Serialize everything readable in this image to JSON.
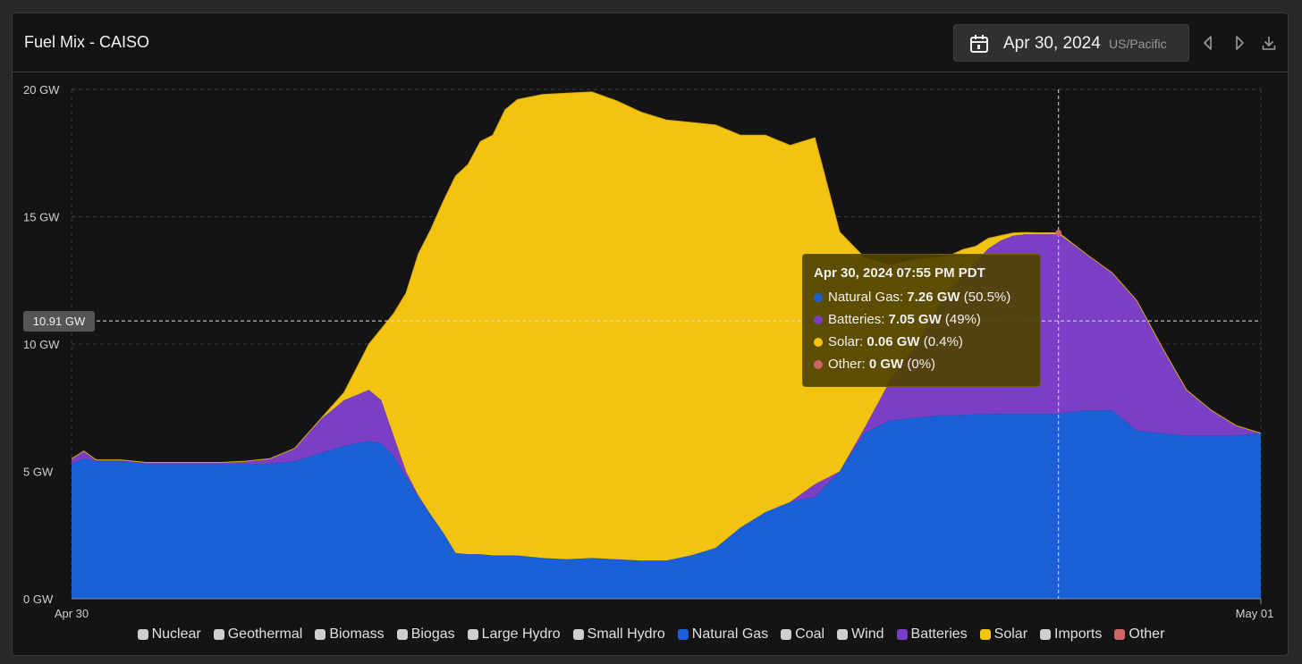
{
  "header": {
    "title": "Fuel Mix - CAISO",
    "date": "Apr 30, 2024",
    "timezone": "US/Pacific"
  },
  "crosshair": {
    "y_label": "10.91 GW",
    "y_value": 10.91,
    "x_value": 19.9167
  },
  "tooltip": {
    "title": "Apr 30, 2024 07:55 PM PDT",
    "rows": [
      {
        "name": "Natural Gas:",
        "value": "7.26 GW",
        "pct": "(50.5%)",
        "color": "#1a5fd6"
      },
      {
        "name": "Batteries:",
        "value": "7.05 GW",
        "pct": "(49%)",
        "color": "#7a3fc4"
      },
      {
        "name": "Solar:",
        "value": "0.06 GW",
        "pct": "(0.4%)",
        "color": "#f2c40f"
      },
      {
        "name": "Other:",
        "value": "0 GW",
        "pct": "(0%)",
        "color": "#d06565"
      }
    ]
  },
  "legend": [
    {
      "label": "Nuclear",
      "color": "#cfcfcf"
    },
    {
      "label": "Geothermal",
      "color": "#cfcfcf"
    },
    {
      "label": "Biomass",
      "color": "#cfcfcf"
    },
    {
      "label": "Biogas",
      "color": "#cfcfcf"
    },
    {
      "label": "Large Hydro",
      "color": "#cfcfcf"
    },
    {
      "label": "Small Hydro",
      "color": "#cfcfcf"
    },
    {
      "label": "Natural Gas",
      "color": "#1a5fd6"
    },
    {
      "label": "Coal",
      "color": "#cfcfcf"
    },
    {
      "label": "Wind",
      "color": "#cfcfcf"
    },
    {
      "label": "Batteries",
      "color": "#7a3fc4"
    },
    {
      "label": "Solar",
      "color": "#f2c40f"
    },
    {
      "label": "Imports",
      "color": "#cfcfcf"
    },
    {
      "label": "Other",
      "color": "#d06565"
    }
  ],
  "chart_data": {
    "type": "area",
    "stacked": true,
    "x_unit": "hour of day (Apr 30, 2024)",
    "x_tick_labels": [
      "Apr 30",
      "May 01"
    ],
    "y_tick_labels": [
      "0 GW",
      "5 GW",
      "10 GW",
      "15 GW",
      "20 GW"
    ],
    "ylim": [
      0,
      20
    ],
    "xlim": [
      0,
      24
    ],
    "grid": true,
    "legend_position": "bottom",
    "x": [
      0,
      0.25,
      0.5,
      1,
      1.5,
      2,
      2.5,
      3,
      3.5,
      4,
      4.5,
      5,
      5.5,
      6,
      6.25,
      6.5,
      6.75,
      7,
      7.25,
      7.5,
      7.75,
      8,
      8.25,
      8.5,
      8.75,
      9,
      9.5,
      10,
      10.5,
      11,
      11.5,
      12,
      12.5,
      13,
      13.5,
      14,
      14.5,
      15,
      15.5,
      16,
      16.5,
      17,
      17.25,
      17.5,
      17.75,
      18,
      18.25,
      18.5,
      18.75,
      19,
      19.25,
      19.5,
      19.75,
      19.9167,
      20,
      20.5,
      21,
      21.5,
      22,
      22.5,
      23,
      23.5,
      24
    ],
    "series": [
      {
        "name": "Natural Gas",
        "color": "#1a5fd6",
        "values": [
          5.3,
          5.5,
          5.4,
          5.4,
          5.3,
          5.3,
          5.3,
          5.3,
          5.3,
          5.3,
          5.4,
          5.7,
          6.0,
          6.2,
          6.1,
          5.6,
          4.8,
          4.0,
          3.3,
          2.6,
          1.8,
          1.75,
          1.75,
          1.7,
          1.7,
          1.7,
          1.6,
          1.55,
          1.6,
          1.55,
          1.5,
          1.5,
          1.7,
          2.0,
          2.8,
          3.4,
          3.8,
          4.0,
          5.0,
          6.5,
          7.0,
          7.1,
          7.15,
          7.2,
          7.2,
          7.22,
          7.24,
          7.25,
          7.26,
          7.26,
          7.26,
          7.26,
          7.26,
          7.26,
          7.3,
          7.4,
          7.4,
          6.6,
          6.5,
          6.4,
          6.4,
          6.4,
          6.5
        ]
      },
      {
        "name": "Batteries",
        "color": "#7a3fc4",
        "values": [
          0.2,
          0.3,
          0.05,
          0.05,
          0.05,
          0.05,
          0.05,
          0.05,
          0.1,
          0.2,
          0.5,
          1.3,
          1.8,
          2.0,
          1.7,
          0.8,
          0.2,
          0.05,
          0,
          0,
          0,
          0,
          0,
          0,
          0,
          0,
          0,
          0,
          0,
          0,
          0,
          0,
          0,
          0,
          0,
          0,
          0,
          0.5,
          0,
          0.2,
          1.5,
          2.8,
          3.5,
          4.3,
          5.0,
          5.5,
          6.0,
          6.5,
          6.8,
          7.0,
          7.05,
          7.05,
          7.05,
          7.05,
          6.9,
          6.1,
          5.4,
          5.1,
          3.4,
          1.8,
          1.0,
          0.4,
          0
        ]
      },
      {
        "name": "Solar",
        "color": "#f2c40f",
        "values": [
          0,
          0,
          0,
          0,
          0,
          0,
          0,
          0,
          0,
          0,
          0,
          0,
          0.3,
          1.8,
          2.8,
          4.8,
          7.0,
          9.5,
          11.2,
          13.0,
          14.8,
          15.3,
          16.2,
          16.5,
          17.5,
          17.9,
          18.2,
          18.3,
          18.3,
          18.0,
          17.6,
          17.3,
          17.0,
          16.6,
          15.4,
          14.8,
          14.0,
          13.6,
          9.4,
          6.7,
          4.6,
          3.4,
          2.7,
          1.9,
          1.3,
          1.0,
          0.6,
          0.4,
          0.2,
          0.1,
          0.07,
          0.06,
          0.06,
          0.06,
          0.05,
          0,
          0,
          0,
          0,
          0,
          0,
          0,
          0
        ]
      },
      {
        "name": "Other",
        "color": "#d06565",
        "values": [
          0,
          0,
          0,
          0,
          0,
          0,
          0,
          0,
          0,
          0,
          0,
          0,
          0,
          0,
          0,
          0,
          0,
          0,
          0,
          0,
          0,
          0,
          0,
          0,
          0,
          0,
          0,
          0,
          0,
          0,
          0,
          0,
          0,
          0,
          0,
          0,
          0,
          0,
          0,
          0,
          0,
          0,
          0,
          0,
          0,
          0,
          0,
          0,
          0,
          0,
          0,
          0,
          0,
          0,
          0,
          0,
          0,
          0,
          0,
          0,
          0,
          0,
          0
        ]
      }
    ]
  }
}
